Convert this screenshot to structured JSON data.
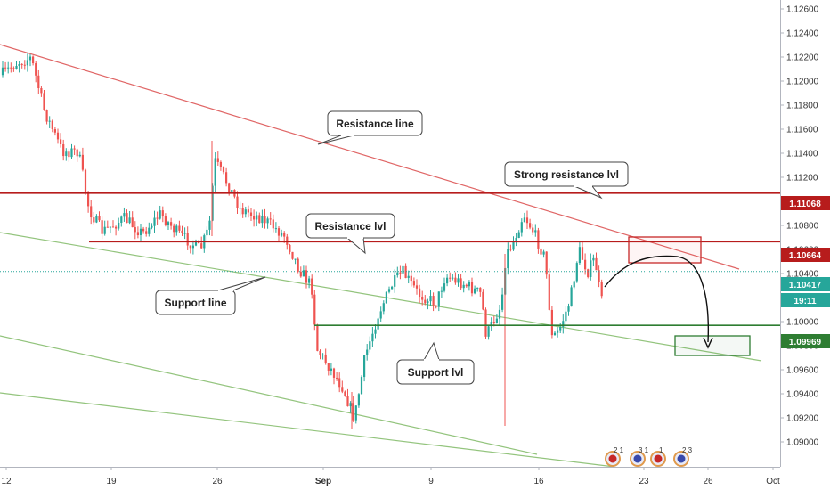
{
  "chart_data": {
    "type": "candlestick",
    "y_axis": {
      "range": [
        1.0898,
        1.1268
      ],
      "ticks": [
        "1.12600",
        "1.12400",
        "1.12200",
        "1.12000",
        "1.11800",
        "1.11600",
        "1.11400",
        "1.11200",
        "1.11000",
        "1.10800",
        "1.10600",
        "1.10400",
        "1.10200",
        "1.10000",
        "1.09800",
        "1.09600",
        "1.09400",
        "1.09200",
        "1.09000"
      ]
    },
    "x_axis": {
      "ticks": [
        "12",
        "19",
        "26",
        "Sep",
        "9",
        "16",
        "23",
        "26",
        "Oct"
      ]
    },
    "price_tags": [
      {
        "value": "1.11068",
        "color": "#b71c1c"
      },
      {
        "value": "1.10664",
        "color": "#b71c1c"
      },
      {
        "value": "1.10417",
        "color": "#26a69a"
      },
      {
        "value": "19:11",
        "color": "#26a69a"
      },
      {
        "value": "1.09969",
        "color": "#2e7d32"
      }
    ],
    "horizontal_levels": [
      {
        "value": 1.11068,
        "color": "#b71c1c"
      },
      {
        "value": 1.10664,
        "color": "#b71c1c"
      },
      {
        "value": 1.09969,
        "color": "#2e7d32"
      },
      {
        "value": 1.10417,
        "color": "#26a69a"
      }
    ],
    "annotations": [
      {
        "text": "Resistance line"
      },
      {
        "text": "Strong resistance lvl"
      },
      {
        "text": "Resistance lvl"
      },
      {
        "text": "Support line"
      },
      {
        "text": "Support lvl"
      }
    ],
    "events": [
      "2 1",
      "3 1",
      "1",
      "2 3"
    ],
    "colors": {
      "up": "#26a69a",
      "down": "#ef5350",
      "resistance": "#e57373",
      "support": "#8bc34a"
    }
  }
}
